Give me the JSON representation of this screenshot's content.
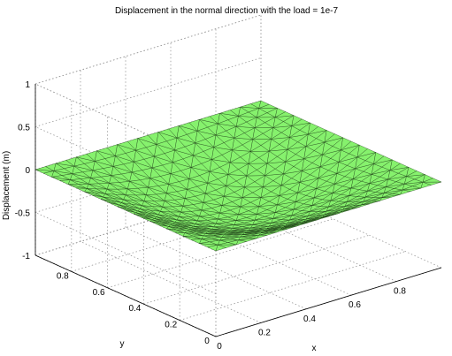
{
  "chart_data": {
    "type": "surface",
    "title": "Displacement in the normal direction with the load = 1e-7",
    "xlabel": "x",
    "ylabel": "y",
    "zlabel": "Displacement (m)",
    "x_ticks": [
      "0",
      "0.2",
      "0.4",
      "0.6",
      "0.8"
    ],
    "y_ticks": [
      "0",
      "0.2",
      "0.4",
      "0.6",
      "0.8"
    ],
    "z_ticks": [
      "-1",
      "-0.5",
      "0",
      "0.5",
      "1"
    ],
    "xlim": [
      0,
      1
    ],
    "ylim": [
      0,
      1
    ],
    "zlim": [
      -1,
      1
    ],
    "surface_color": "#86f16d",
    "edge_color": "#1a3b12",
    "grid": true,
    "surface": {
      "description_values": "displacement z(x,y) on unit square, zero along all edges, sagging to a minimum at the center",
      "z_min": -0.45,
      "edge_z": 0
    }
  }
}
